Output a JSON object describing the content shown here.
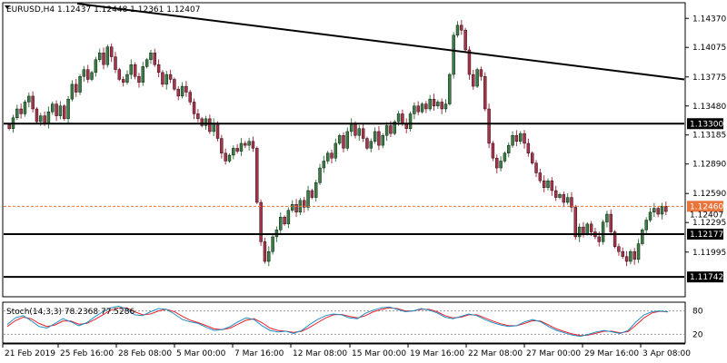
{
  "header": {
    "symbol": "EURUSD,H4",
    "ohlc": "1.12437 1.12448 1.12361 1.12407",
    "stoch": "Stoch(14,3,3) 78.2368 77.5286"
  },
  "colors": {
    "bull": "#3a7d44",
    "bear": "#a8324a",
    "price_line": "#e8743b",
    "level_line": "#000000",
    "trend_line": "#000000",
    "stoch_main": "#1e90c8",
    "stoch_signal": "#e8222a"
  },
  "chart_data": [
    {
      "type": "candlestick",
      "title": "",
      "ylim": [
        1.1155,
        1.1452
      ],
      "y_ticks": [
        "1.14370",
        "1.14075",
        "1.13775",
        "1.13480",
        "1.13185",
        "1.12890",
        "1.12590",
        "1.12295",
        "1.11995"
      ],
      "x_labels": [
        "21 Feb 2019",
        "25 Feb 16:00",
        "28 Feb 08:00",
        "5 Mar 00:00",
        "7 Mar 16:00",
        "12 Mar 08:00",
        "15 Mar 00:00",
        "19 Mar 16:00",
        "22 Mar 08:00",
        "27 Mar 00:00",
        "29 Mar 16:00",
        "3 Apr 08:00"
      ],
      "current_price": {
        "label": "1.12460",
        "value": 1.1246
      },
      "current_price_sub": "1.12407",
      "levels": [
        {
          "label": "1.13300",
          "value": 1.133
        },
        {
          "label": "1.12177",
          "value": 1.12177
        },
        {
          "label": "1.11742",
          "value": 1.11742
        }
      ],
      "trendline": {
        "from": {
          "x": "20 Feb 2019",
          "y": 1.1452
        },
        "to": {
          "x": "3 Apr 2019",
          "y": 1.1375
        }
      },
      "closes": [
        1.1325,
        1.1336,
        1.1345,
        1.134,
        1.1352,
        1.1358,
        1.1345,
        1.1332,
        1.1338,
        1.133,
        1.1342,
        1.135,
        1.1338,
        1.1348,
        1.1335,
        1.1355,
        1.137,
        1.1362,
        1.1378,
        1.1385,
        1.1375,
        1.1382,
        1.1395,
        1.1402,
        1.139,
        1.1408,
        1.1398,
        1.1385,
        1.1375,
        1.1372,
        1.138,
        1.139,
        1.1378,
        1.1372,
        1.1388,
        1.1395,
        1.1402,
        1.139,
        1.1382,
        1.137,
        1.138,
        1.1375,
        1.1365,
        1.1358,
        1.1368,
        1.1362,
        1.1352,
        1.134,
        1.1335,
        1.1328,
        1.1335,
        1.1322,
        1.133,
        1.1315,
        1.13,
        1.1292,
        1.1298,
        1.1305,
        1.1302,
        1.131,
        1.1308,
        1.1312,
        1.1305,
        1.125,
        1.121,
        1.119,
        1.12,
        1.1215,
        1.1222,
        1.1235,
        1.1228,
        1.1242,
        1.1248,
        1.124,
        1.1252,
        1.1245,
        1.1262,
        1.1255,
        1.127,
        1.1285,
        1.1292,
        1.13,
        1.1295,
        1.131,
        1.1318,
        1.1305,
        1.1322,
        1.133,
        1.1318,
        1.1325,
        1.1315,
        1.1305,
        1.1312,
        1.1322,
        1.1308,
        1.1318,
        1.1328,
        1.132,
        1.1332,
        1.134,
        1.133,
        1.1325,
        1.134,
        1.1348,
        1.1342,
        1.135,
        1.1345,
        1.1355,
        1.1348,
        1.1352,
        1.1345,
        1.135,
        1.138,
        1.142,
        1.143,
        1.1425,
        1.1405,
        1.138,
        1.1368,
        1.1385,
        1.1378,
        1.1345,
        1.131,
        1.1295,
        1.1285,
        1.1292,
        1.13,
        1.1308,
        1.1318,
        1.1312,
        1.132,
        1.131,
        1.13,
        1.129,
        1.128,
        1.1272,
        1.1265,
        1.1272,
        1.1262,
        1.1255,
        1.1258,
        1.125,
        1.1255,
        1.1245,
        1.1215,
        1.1225,
        1.1218,
        1.1228,
        1.122,
        1.1215,
        1.121,
        1.123,
        1.1238,
        1.122,
        1.1205,
        1.12,
        1.1195,
        1.119,
        1.12,
        1.1192,
        1.1208,
        1.1222,
        1.1232,
        1.124,
        1.1244,
        1.1238,
        1.1246,
        1.12407
      ],
      "stochastic": {
        "label": "Stoch(14,3,3)",
        "main": 78.2368,
        "signal": 77.5286,
        "ylim": [
          0,
          100
        ],
        "levels": [
          80,
          20
        ],
        "main_series": [
          45,
          62,
          68,
          55,
          40,
          36,
          48,
          60,
          52,
          42,
          50,
          65,
          78,
          88,
          92,
          85,
          70,
          68,
          78,
          86,
          84,
          72,
          58,
          52,
          48,
          38,
          30,
          32,
          40,
          52,
          62,
          58,
          42,
          30,
          26,
          28,
          22,
          30,
          45,
          58,
          68,
          72,
          70,
          62,
          60,
          74,
          82,
          88,
          90,
          84,
          78,
          80,
          86,
          82,
          75,
          64,
          60,
          66,
          72,
          68,
          58,
          50,
          44,
          40,
          42,
          52,
          58,
          52,
          40,
          30,
          24,
          18,
          15,
          20,
          26,
          30,
          26,
          22,
          30,
          52,
          70,
          78,
          80,
          78
        ],
        "signal_series": [
          40,
          55,
          64,
          60,
          48,
          40,
          44,
          54,
          54,
          46,
          48,
          58,
          70,
          82,
          88,
          88,
          78,
          70,
          72,
          80,
          84,
          78,
          66,
          56,
          50,
          42,
          34,
          32,
          36,
          46,
          56,
          60,
          50,
          36,
          30,
          28,
          25,
          28,
          38,
          50,
          62,
          70,
          71,
          66,
          62,
          68,
          78,
          84,
          88,
          86,
          80,
          80,
          84,
          84,
          78,
          68,
          62,
          64,
          70,
          70,
          62,
          54,
          47,
          42,
          42,
          48,
          55,
          54,
          44,
          34,
          27,
          21,
          17,
          18,
          23,
          28,
          28,
          24,
          27,
          44,
          62,
          75,
          79,
          77.5
        ]
      }
    }
  ]
}
